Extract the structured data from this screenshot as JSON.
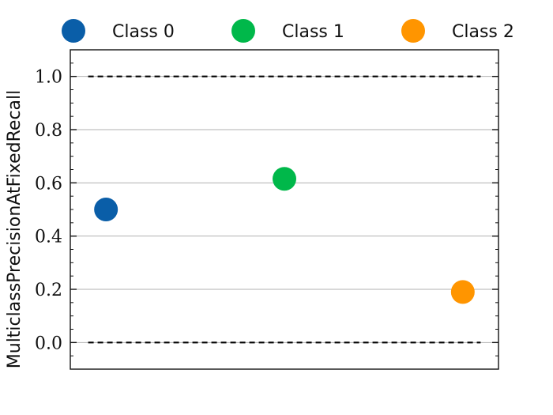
{
  "chart_data": {
    "type": "scatter",
    "title": "",
    "xlabel": "",
    "ylabel": "MulticlassPrecisionAtFixedRecall",
    "ylim": [
      -0.1,
      1.1
    ],
    "grid": true,
    "legend_position": "top",
    "yticks": [
      {
        "value": 0.0,
        "label": "0.0"
      },
      {
        "value": 0.2,
        "label": "0.2"
      },
      {
        "value": 0.4,
        "label": "0.4"
      },
      {
        "value": 0.6,
        "label": "0.6"
      },
      {
        "value": 0.8,
        "label": "0.8"
      },
      {
        "value": 1.0,
        "label": "1.0"
      }
    ],
    "reference_lines": [
      0.0,
      1.0
    ],
    "series": [
      {
        "name": "Class 0",
        "color": "#0a5ea8",
        "x": 0,
        "y": 0.5
      },
      {
        "name": "Class 1",
        "color": "#00b84a",
        "x": 1,
        "y": 0.615
      },
      {
        "name": "Class 2",
        "color": "#ff9500",
        "x": 2,
        "y": 0.19
      }
    ]
  }
}
